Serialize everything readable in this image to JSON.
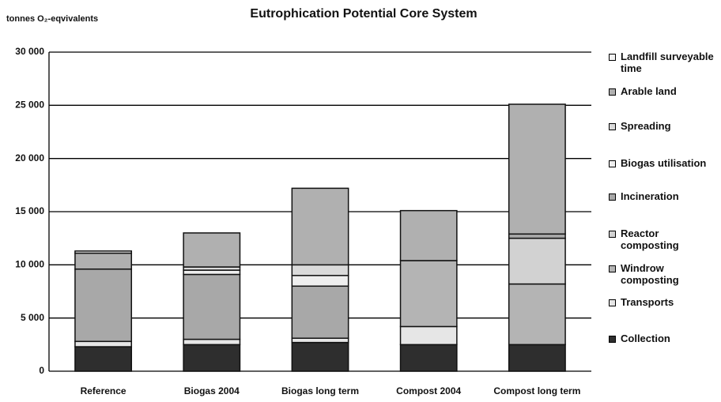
{
  "chart_data": {
    "type": "stacked_bar",
    "title": "Eutrophication Potential Core System",
    "y_label": "tonnes O₂-eqvivalents",
    "categories": [
      "Reference",
      "Biogas 2004",
      "Biogas long term",
      "Compost 2004",
      "Compost long term"
    ],
    "series": [
      {
        "name": "Collection",
        "color": "#2e2e2e",
        "values": [
          2300,
          2500,
          2700,
          2500,
          2500
        ]
      },
      {
        "name": "Transports",
        "color": "#e6e6e6",
        "values": [
          500,
          500,
          400,
          1700,
          0
        ]
      },
      {
        "name": "Windrow composting",
        "color": "#b4b4b4",
        "values": [
          0,
          0,
          0,
          6200,
          5700
        ]
      },
      {
        "name": "Reactor composting",
        "color": "#d2d2d2",
        "values": [
          0,
          0,
          0,
          0,
          4300
        ]
      },
      {
        "name": "Incineration",
        "color": "#a8a8a8",
        "values": [
          6800,
          6100,
          4900,
          0,
          400
        ]
      },
      {
        "name": "Biogas utilisation",
        "color": "#eeeeee",
        "values": [
          0,
          400,
          1000,
          0,
          0
        ]
      },
      {
        "name": "Spreading",
        "color": "#dadada",
        "values": [
          0,
          300,
          1000,
          0,
          0
        ]
      },
      {
        "name": "Arable land",
        "color": "#b0b0b0",
        "values": [
          1500,
          3200,
          7200,
          4700,
          12200
        ]
      },
      {
        "name": "Landfill surveyable time",
        "color": "#f2f2f2",
        "values": [
          200,
          0,
          0,
          0,
          0
        ]
      }
    ],
    "ylim": [
      0,
      30000
    ],
    "yticks": [
      0,
      {
        "value": 5000,
        "label": "5 000"
      },
      {
        "value": 10000,
        "label": "10 000"
      },
      {
        "value": 15000,
        "label": "15 000"
      },
      {
        "value": 20000,
        "label": "20 000"
      },
      {
        "value": 25000,
        "label": "25 000"
      },
      {
        "value": 30000,
        "label": "30 000"
      }
    ],
    "grid": true
  }
}
